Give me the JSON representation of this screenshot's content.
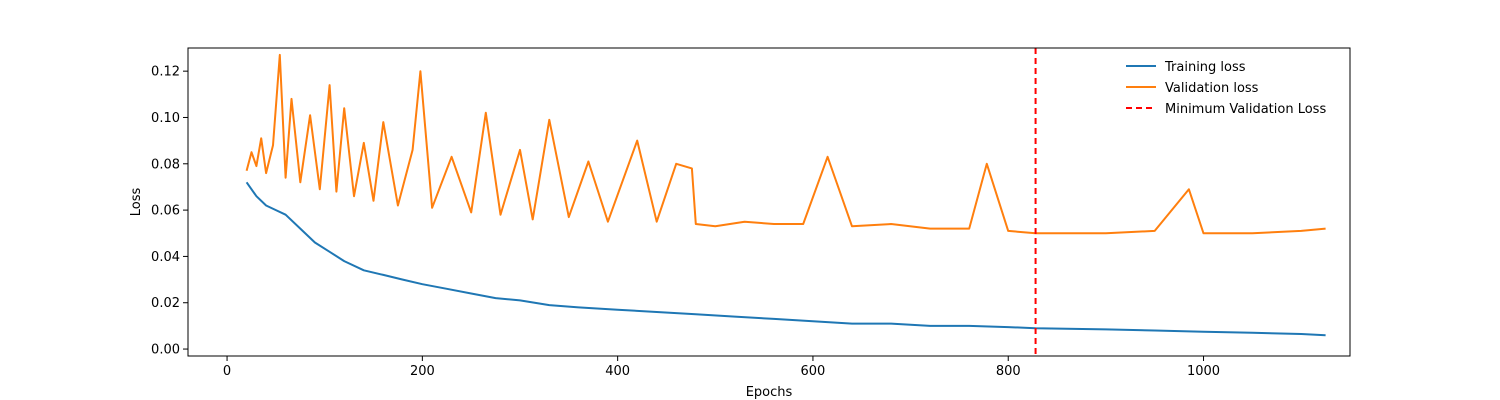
{
  "chart_data": {
    "type": "line",
    "title": "",
    "xlabel": "Epochs",
    "ylabel": "Loss",
    "xlim": [
      -40,
      1150
    ],
    "ylim": [
      -0.003,
      0.13
    ],
    "xticks": [
      0,
      200,
      400,
      600,
      800,
      1000
    ],
    "yticks": [
      0.0,
      0.02,
      0.04,
      0.06,
      0.08,
      0.1,
      0.12
    ],
    "xtick_labels": [
      "0",
      "200",
      "400",
      "600",
      "800",
      "1000"
    ],
    "ytick_labels": [
      "0.00",
      "0.02",
      "0.04",
      "0.06",
      "0.08",
      "0.10",
      "0.12"
    ],
    "grid": false,
    "legend_position": "top-right",
    "series": [
      {
        "name": "Training loss",
        "color": "#1f77b4",
        "x": [
          20,
          30,
          40,
          50,
          60,
          75,
          90,
          105,
          120,
          140,
          160,
          180,
          200,
          225,
          250,
          275,
          300,
          330,
          360,
          400,
          440,
          480,
          520,
          560,
          600,
          640,
          680,
          720,
          760,
          800,
          828,
          860,
          900,
          950,
          1000,
          1050,
          1100,
          1125
        ],
        "y": [
          0.072,
          0.066,
          0.062,
          0.06,
          0.058,
          0.052,
          0.046,
          0.042,
          0.038,
          0.034,
          0.032,
          0.03,
          0.028,
          0.026,
          0.024,
          0.022,
          0.021,
          0.019,
          0.018,
          0.017,
          0.016,
          0.015,
          0.014,
          0.013,
          0.012,
          0.011,
          0.011,
          0.01,
          0.01,
          0.0095,
          0.009,
          0.0088,
          0.0085,
          0.008,
          0.0075,
          0.007,
          0.0065,
          0.006
        ]
      },
      {
        "name": "Validation loss",
        "color": "#ff7f0e",
        "x": [
          20,
          25,
          30,
          35,
          40,
          47,
          54,
          60,
          66,
          75,
          85,
          95,
          105,
          112,
          120,
          130,
          140,
          150,
          160,
          175,
          190,
          198,
          210,
          230,
          250,
          265,
          280,
          300,
          313,
          330,
          350,
          370,
          390,
          420,
          440,
          460,
          476,
          480,
          500,
          530,
          560,
          590,
          615,
          640,
          680,
          720,
          760,
          778,
          800,
          828,
          860,
          900,
          950,
          985,
          1000,
          1050,
          1100,
          1125
        ],
        "y": [
          0.077,
          0.085,
          0.079,
          0.091,
          0.076,
          0.088,
          0.127,
          0.074,
          0.108,
          0.072,
          0.101,
          0.069,
          0.114,
          0.068,
          0.104,
          0.066,
          0.089,
          0.064,
          0.098,
          0.062,
          0.086,
          0.12,
          0.061,
          0.083,
          0.059,
          0.102,
          0.058,
          0.086,
          0.056,
          0.099,
          0.057,
          0.081,
          0.055,
          0.09,
          0.055,
          0.08,
          0.078,
          0.054,
          0.053,
          0.055,
          0.054,
          0.054,
          0.083,
          0.053,
          0.054,
          0.052,
          0.052,
          0.08,
          0.051,
          0.05,
          0.05,
          0.05,
          0.051,
          0.069,
          0.05,
          0.05,
          0.051,
          0.052
        ]
      },
      {
        "name": "Minimum Validation Loss",
        "color": "#ff0000",
        "style": "dashed",
        "x_value": 828
      }
    ]
  }
}
